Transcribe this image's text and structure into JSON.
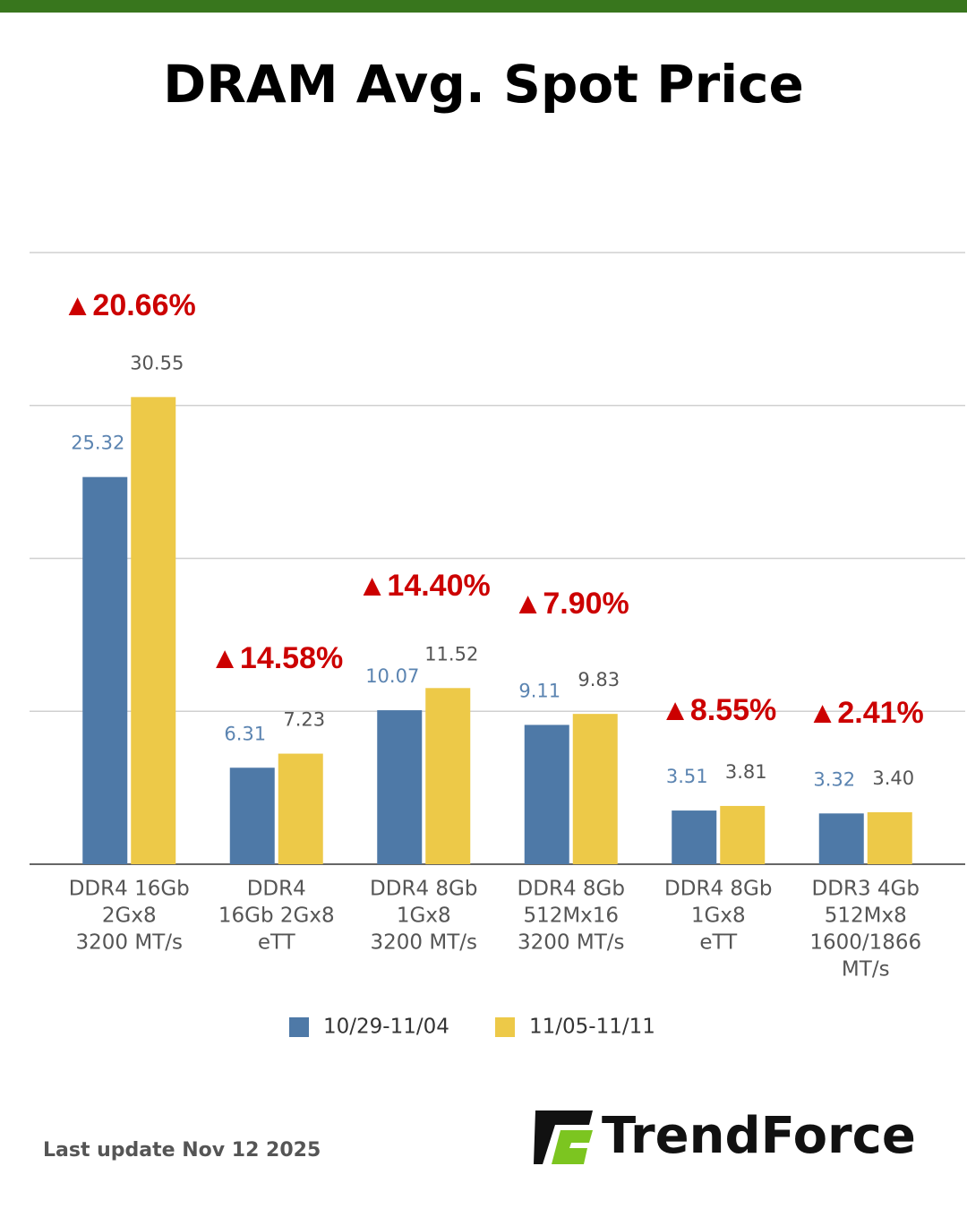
{
  "chart_data": {
    "type": "bar",
    "title": "DRAM Avg. Spot Price",
    "categories": [
      [
        "DDR4 16Gb",
        "2Gx8",
        "3200 MT/s"
      ],
      [
        "DDR4",
        "16Gb 2Gx8",
        "eTT"
      ],
      [
        "DDR4 8Gb",
        "1Gx8",
        "3200 MT/s"
      ],
      [
        "DDR4 8Gb",
        "512Mx16",
        "3200 MT/s"
      ],
      [
        "DDR4 8Gb",
        "1Gx8",
        "eTT"
      ],
      [
        "DDR3 4Gb",
        "512Mx8",
        "1600/1866",
        "MT/s"
      ]
    ],
    "series": [
      {
        "name": "10/29-11/04",
        "color": "#4e79a7",
        "values": [
          25.32,
          6.31,
          10.07,
          9.11,
          3.51,
          3.32
        ],
        "value_labels": [
          "25.32",
          "6.31",
          "10.07",
          "9.11",
          "3.51",
          "3.32"
        ]
      },
      {
        "name": "11/05-11/11",
        "color": "#edc948",
        "values": [
          30.55,
          7.23,
          11.52,
          9.83,
          3.81,
          3.4
        ],
        "value_labels": [
          "30.55",
          "7.23",
          "11.52",
          "9.83",
          "3.81",
          "3.40"
        ]
      }
    ],
    "annotations": [
      "▲20.66%",
      "▲14.58%",
      "▲14.40%",
      "▲7.90%",
      "▲8.55%",
      "▲2.41%"
    ],
    "ylim": [
      0,
      40
    ],
    "yticks": [
      0,
      10,
      20,
      30,
      40
    ],
    "grid": true,
    "legend": "bottom",
    "footer": "Last update Nov 12  2025",
    "brand": "TrendForce"
  }
}
